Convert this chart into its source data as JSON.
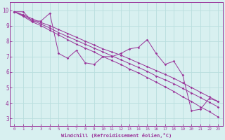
{
  "x_data": [
    0,
    1,
    2,
    3,
    4,
    5,
    6,
    7,
    8,
    9,
    10,
    11,
    12,
    13,
    14,
    15,
    16,
    17,
    18,
    19,
    20,
    21,
    22,
    23
  ],
  "y_actual": [
    9.9,
    9.9,
    9.3,
    9.3,
    9.8,
    7.2,
    6.9,
    7.4,
    6.6,
    6.5,
    7.0,
    7.0,
    7.2,
    7.5,
    7.6,
    8.1,
    7.2,
    6.5,
    6.7,
    5.8,
    3.5,
    3.6,
    4.3,
    4.1
  ],
  "y_reg1": [
    9.9,
    9.7,
    9.45,
    9.2,
    9.0,
    8.75,
    8.5,
    8.25,
    8.0,
    7.75,
    7.5,
    7.3,
    7.1,
    6.85,
    6.6,
    6.35,
    6.1,
    5.85,
    5.6,
    5.3,
    5.0,
    4.7,
    4.4,
    4.1
  ],
  "y_reg2": [
    9.9,
    9.65,
    9.35,
    9.1,
    8.85,
    8.55,
    8.3,
    8.05,
    7.8,
    7.55,
    7.3,
    7.05,
    6.8,
    6.55,
    6.3,
    6.05,
    5.75,
    5.5,
    5.25,
    4.95,
    4.65,
    4.35,
    4.05,
    3.75
  ],
  "y_reg3": [
    9.9,
    9.6,
    9.25,
    9.0,
    8.7,
    8.4,
    8.1,
    7.8,
    7.55,
    7.3,
    7.0,
    6.75,
    6.5,
    6.2,
    5.95,
    5.65,
    5.35,
    5.05,
    4.75,
    4.4,
    4.1,
    3.75,
    3.45,
    3.1
  ],
  "line_color": "#993399",
  "bg_color": "#d8f0f0",
  "grid_color": "#b8dede",
  "xlabel": "Windchill (Refroidissement éolien,°C)",
  "ylim": [
    2.5,
    10.5
  ],
  "xlim": [
    -0.5,
    23.5
  ],
  "yticks": [
    3,
    4,
    5,
    6,
    7,
    8,
    9,
    10
  ],
  "xticks": [
    0,
    1,
    2,
    3,
    4,
    5,
    6,
    7,
    8,
    9,
    10,
    11,
    12,
    13,
    14,
    15,
    16,
    17,
    18,
    19,
    20,
    21,
    22,
    23
  ]
}
